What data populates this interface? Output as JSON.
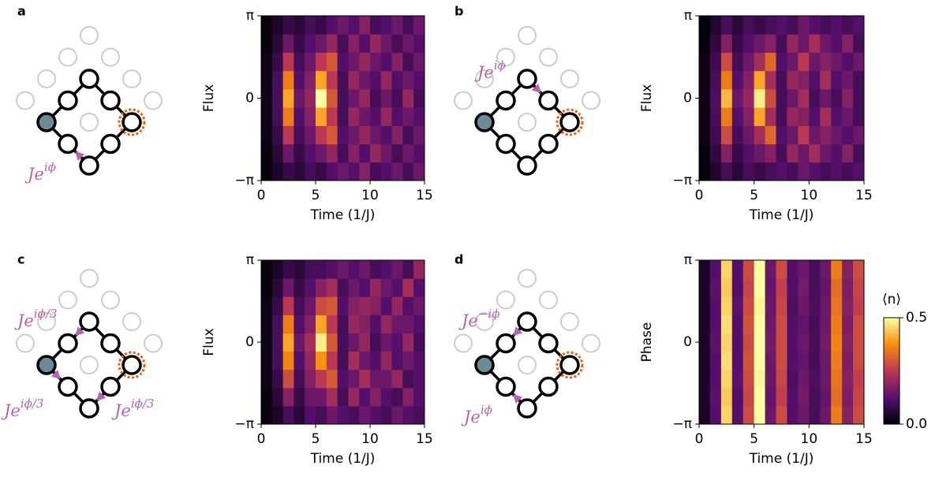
{
  "diagrams": [
    {
      "panel": "a",
      "annotations": [
        {
          "base": "Je",
          "sup": "iϕ"
        }
      ]
    },
    {
      "panel": "b",
      "annotations": [
        {
          "base": "Je",
          "sup": "iϕ"
        }
      ]
    },
    {
      "panel": "c",
      "annotations": [
        {
          "base": "Je",
          "sup": "iϕ/3"
        },
        {
          "base": "Je",
          "sup": "iϕ/3"
        },
        {
          "base": "Je",
          "sup": "iϕ/3"
        }
      ]
    },
    {
      "panel": "d",
      "annotations": [
        {
          "base": "Je",
          "sup": "−iϕ"
        },
        {
          "base": "Je",
          "sup": "iϕ"
        }
      ]
    }
  ],
  "chart_data": [
    {
      "type": "heatmap",
      "colormap": "inferno",
      "xlabel": "Time (1/J)",
      "ylabel": "Flux",
      "xlim": [
        0,
        15
      ],
      "xticks": [
        0,
        5,
        10,
        15
      ],
      "ylim": [
        -3.1416,
        3.1416
      ],
      "yticks": [
        {
          "value": -3.1416,
          "label": "−π"
        },
        0,
        {
          "value": 3.1416,
          "label": "π"
        }
      ],
      "x_bins": [
        0,
        1,
        2,
        3,
        4,
        5,
        6,
        7,
        8,
        9,
        10,
        11,
        12,
        13,
        14,
        15
      ],
      "y_bins": [
        -3.1416,
        -2.4435,
        -1.7453,
        -1.0472,
        -0.3491,
        0.3491,
        1.0472,
        1.7453,
        2.4435,
        3.1416
      ],
      "values": [
        [
          0.01,
          0.04,
          0.08,
          0.06,
          0.1,
          0.08,
          0.12,
          0.15,
          0.12,
          0.18,
          0.1,
          0.12,
          0.15,
          0.1,
          0.15
        ],
        [
          0.01,
          0.06,
          0.15,
          0.08,
          0.12,
          0.15,
          0.2,
          0.1,
          0.18,
          0.12,
          0.2,
          0.15,
          0.1,
          0.15,
          0.12
        ],
        [
          0.02,
          0.08,
          0.25,
          0.1,
          0.15,
          0.25,
          0.3,
          0.12,
          0.15,
          0.2,
          0.15,
          0.12,
          0.18,
          0.1,
          0.15
        ],
        [
          0.02,
          0.1,
          0.35,
          0.12,
          0.18,
          0.4,
          0.25,
          0.1,
          0.2,
          0.15,
          0.12,
          0.2,
          0.12,
          0.15,
          0.12
        ],
        [
          0.02,
          0.1,
          0.4,
          0.15,
          0.2,
          0.5,
          0.3,
          0.1,
          0.15,
          0.2,
          0.1,
          0.15,
          0.1,
          0.2,
          0.1
        ],
        [
          0.02,
          0.1,
          0.35,
          0.12,
          0.18,
          0.4,
          0.25,
          0.1,
          0.2,
          0.15,
          0.12,
          0.2,
          0.12,
          0.15,
          0.12
        ],
        [
          0.02,
          0.08,
          0.25,
          0.1,
          0.15,
          0.25,
          0.3,
          0.12,
          0.15,
          0.2,
          0.15,
          0.12,
          0.18,
          0.1,
          0.15
        ],
        [
          0.01,
          0.06,
          0.15,
          0.08,
          0.12,
          0.15,
          0.2,
          0.1,
          0.18,
          0.12,
          0.2,
          0.15,
          0.1,
          0.15,
          0.12
        ],
        [
          0.01,
          0.04,
          0.08,
          0.06,
          0.1,
          0.08,
          0.12,
          0.15,
          0.12,
          0.18,
          0.1,
          0.12,
          0.15,
          0.1,
          0.15
        ]
      ]
    },
    {
      "type": "heatmap",
      "colormap": "inferno",
      "xlabel": "Time (1/J)",
      "ylabel": "Flux",
      "xlim": [
        0,
        15
      ],
      "xticks": [
        0,
        5,
        10,
        15
      ],
      "ylim": [
        -3.1416,
        3.1416
      ],
      "yticks": [
        {
          "value": -3.1416,
          "label": "−π"
        },
        0,
        {
          "value": 3.1416,
          "label": "π"
        }
      ],
      "x_bins": [
        0,
        1,
        2,
        3,
        4,
        5,
        6,
        7,
        8,
        9,
        10,
        11,
        12,
        13,
        14,
        15
      ],
      "y_bins": [
        -3.1416,
        -2.4435,
        -1.7453,
        -1.0472,
        -0.3491,
        0.3491,
        1.0472,
        1.7453,
        2.4435,
        3.1416
      ],
      "values": [
        [
          0.01,
          0.05,
          0.1,
          0.06,
          0.1,
          0.08,
          0.1,
          0.12,
          0.1,
          0.15,
          0.12,
          0.1,
          0.12,
          0.1,
          0.12
        ],
        [
          0.01,
          0.07,
          0.18,
          0.08,
          0.12,
          0.15,
          0.18,
          0.1,
          0.2,
          0.15,
          0.22,
          0.15,
          0.12,
          0.18,
          0.1
        ],
        [
          0.02,
          0.09,
          0.28,
          0.1,
          0.15,
          0.22,
          0.32,
          0.12,
          0.15,
          0.25,
          0.15,
          0.18,
          0.15,
          0.12,
          0.15
        ],
        [
          0.02,
          0.1,
          0.35,
          0.12,
          0.18,
          0.4,
          0.22,
          0.1,
          0.2,
          0.18,
          0.12,
          0.22,
          0.12,
          0.15,
          0.1
        ],
        [
          0.02,
          0.11,
          0.42,
          0.15,
          0.2,
          0.48,
          0.28,
          0.1,
          0.15,
          0.22,
          0.1,
          0.15,
          0.1,
          0.18,
          0.1
        ],
        [
          0.02,
          0.1,
          0.35,
          0.12,
          0.18,
          0.4,
          0.22,
          0.1,
          0.2,
          0.18,
          0.12,
          0.22,
          0.12,
          0.15,
          0.1
        ],
        [
          0.02,
          0.09,
          0.28,
          0.1,
          0.15,
          0.22,
          0.32,
          0.12,
          0.15,
          0.25,
          0.15,
          0.18,
          0.15,
          0.12,
          0.15
        ],
        [
          0.01,
          0.07,
          0.18,
          0.08,
          0.12,
          0.15,
          0.18,
          0.1,
          0.2,
          0.15,
          0.22,
          0.15,
          0.12,
          0.18,
          0.1
        ],
        [
          0.01,
          0.05,
          0.1,
          0.06,
          0.1,
          0.08,
          0.1,
          0.12,
          0.1,
          0.15,
          0.12,
          0.1,
          0.12,
          0.1,
          0.12
        ]
      ]
    },
    {
      "type": "heatmap",
      "colormap": "inferno",
      "xlabel": "Time (1/J)",
      "ylabel": "Flux",
      "xlim": [
        0,
        15
      ],
      "xticks": [
        0,
        5,
        10,
        15
      ],
      "ylim": [
        -3.1416,
        3.1416
      ],
      "yticks": [
        {
          "value": -3.1416,
          "label": "−π"
        },
        0,
        {
          "value": 3.1416,
          "label": "π"
        }
      ],
      "x_bins": [
        0,
        1,
        2,
        3,
        4,
        5,
        6,
        7,
        8,
        9,
        10,
        11,
        12,
        13,
        14,
        15
      ],
      "y_bins": [
        -3.1416,
        -2.4435,
        -1.7453,
        -1.0472,
        -0.3491,
        0.3491,
        1.0472,
        1.7453,
        2.4435,
        3.1416
      ],
      "values": [
        [
          0.01,
          0.04,
          0.1,
          0.06,
          0.12,
          0.1,
          0.15,
          0.12,
          0.1,
          0.15,
          0.12,
          0.1,
          0.15,
          0.12,
          0.1
        ],
        [
          0.01,
          0.06,
          0.18,
          0.08,
          0.15,
          0.15,
          0.22,
          0.1,
          0.2,
          0.12,
          0.18,
          0.12,
          0.1,
          0.18,
          0.12
        ],
        [
          0.02,
          0.08,
          0.28,
          0.1,
          0.18,
          0.25,
          0.3,
          0.12,
          0.15,
          0.22,
          0.15,
          0.15,
          0.2,
          0.1,
          0.12
        ],
        [
          0.02,
          0.1,
          0.36,
          0.12,
          0.2,
          0.38,
          0.25,
          0.1,
          0.22,
          0.15,
          0.12,
          0.2,
          0.12,
          0.15,
          0.12
        ],
        [
          0.02,
          0.1,
          0.4,
          0.15,
          0.22,
          0.48,
          0.3,
          0.1,
          0.15,
          0.2,
          0.1,
          0.15,
          0.12,
          0.2,
          0.1
        ],
        [
          0.02,
          0.1,
          0.35,
          0.12,
          0.18,
          0.4,
          0.25,
          0.1,
          0.2,
          0.18,
          0.12,
          0.2,
          0.15,
          0.15,
          0.12
        ],
        [
          0.02,
          0.08,
          0.25,
          0.1,
          0.15,
          0.28,
          0.3,
          0.12,
          0.18,
          0.2,
          0.18,
          0.12,
          0.2,
          0.12,
          0.15
        ],
        [
          0.01,
          0.06,
          0.15,
          0.08,
          0.12,
          0.18,
          0.22,
          0.1,
          0.15,
          0.12,
          0.2,
          0.15,
          0.12,
          0.22,
          0.12
        ],
        [
          0.01,
          0.04,
          0.08,
          0.06,
          0.1,
          0.1,
          0.12,
          0.15,
          0.12,
          0.15,
          0.1,
          0.12,
          0.15,
          0.1,
          0.2
        ]
      ]
    },
    {
      "type": "heatmap",
      "colormap": "inferno",
      "xlabel": "Time (1/J)",
      "ylabel": "Phase",
      "xlim": [
        0,
        15
      ],
      "xticks": [
        0,
        5,
        10,
        15
      ],
      "ylim": [
        -3.1416,
        3.1416
      ],
      "yticks": [
        {
          "value": -3.1416,
          "label": "−π"
        },
        0,
        {
          "value": 3.1416,
          "label": "π"
        }
      ],
      "x_bins": [
        0,
        1,
        2,
        3,
        4,
        5,
        6,
        7,
        8,
        9,
        10,
        11,
        12,
        13,
        14,
        15
      ],
      "y_bins": [
        -3.1416,
        -2.4435,
        -1.7453,
        -1.0472,
        -0.3491,
        0.3491,
        1.0472,
        1.7453,
        2.4435,
        3.1416
      ],
      "colorbar": {
        "label": "⟨n⟩",
        "lim": [
          0,
          0.5
        ],
        "ticks": [
          {
            "value": 0,
            "label": "0.0"
          },
          0.5
        ]
      },
      "values": [
        [
          0.04,
          0.12,
          0.45,
          0.12,
          0.28,
          0.5,
          0.15,
          0.28,
          0.12,
          0.15,
          0.1,
          0.15,
          0.35,
          0.18,
          0.28
        ],
        [
          0.04,
          0.13,
          0.44,
          0.12,
          0.27,
          0.5,
          0.14,
          0.26,
          0.12,
          0.16,
          0.1,
          0.14,
          0.33,
          0.17,
          0.27
        ],
        [
          0.04,
          0.12,
          0.45,
          0.13,
          0.28,
          0.49,
          0.15,
          0.27,
          0.11,
          0.15,
          0.11,
          0.15,
          0.34,
          0.18,
          0.26
        ],
        [
          0.04,
          0.12,
          0.46,
          0.12,
          0.29,
          0.5,
          0.15,
          0.28,
          0.12,
          0.14,
          0.1,
          0.15,
          0.35,
          0.17,
          0.28
        ],
        [
          0.04,
          0.13,
          0.45,
          0.12,
          0.28,
          0.5,
          0.16,
          0.28,
          0.12,
          0.15,
          0.1,
          0.16,
          0.36,
          0.18,
          0.28
        ],
        [
          0.04,
          0.12,
          0.46,
          0.12,
          0.29,
          0.5,
          0.15,
          0.28,
          0.12,
          0.14,
          0.1,
          0.15,
          0.35,
          0.17,
          0.28
        ],
        [
          0.04,
          0.12,
          0.45,
          0.13,
          0.28,
          0.49,
          0.15,
          0.27,
          0.11,
          0.15,
          0.11,
          0.15,
          0.34,
          0.18,
          0.26
        ],
        [
          0.04,
          0.13,
          0.44,
          0.12,
          0.27,
          0.5,
          0.14,
          0.26,
          0.12,
          0.16,
          0.1,
          0.14,
          0.33,
          0.17,
          0.27
        ],
        [
          0.04,
          0.12,
          0.45,
          0.12,
          0.28,
          0.5,
          0.15,
          0.28,
          0.12,
          0.15,
          0.1,
          0.15,
          0.35,
          0.18,
          0.28
        ]
      ]
    }
  ]
}
